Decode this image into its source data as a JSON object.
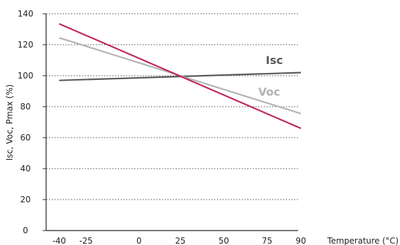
{
  "chart_data": {
    "type": "line",
    "title": "",
    "xlabel": "Temperature (°C)",
    "ylabel": "Isc, Voc, Pmax (%)",
    "x_ticks": [
      -40,
      -25,
      0,
      25,
      50,
      75,
      90
    ],
    "x_tick_labels": [
      "-40",
      "-25",
      "0",
      "25",
      "50",
      "75",
      "90"
    ],
    "y_ticks": [
      0,
      20,
      40,
      60,
      80,
      100,
      120,
      140
    ],
    "y_tick_labels": [
      "0",
      "20",
      "40",
      "60",
      "80",
      "100",
      "120",
      "140"
    ],
    "xlim": [
      -40,
      90
    ],
    "ylim": [
      0,
      140
    ],
    "grid": "horizontal dashed",
    "series": [
      {
        "label": "Isc",
        "color": "#595959",
        "x": [
          -40,
          90
        ],
        "y": [
          97,
          102
        ]
      },
      {
        "label": "Voc",
        "color": "#b3b3b3",
        "x": [
          -40,
          90
        ],
        "y": [
          124.5,
          75.5
        ]
      },
      {
        "label": "",
        "color": "#c0245c",
        "x": [
          -40,
          90
        ],
        "y": [
          133.5,
          66
        ]
      }
    ]
  }
}
